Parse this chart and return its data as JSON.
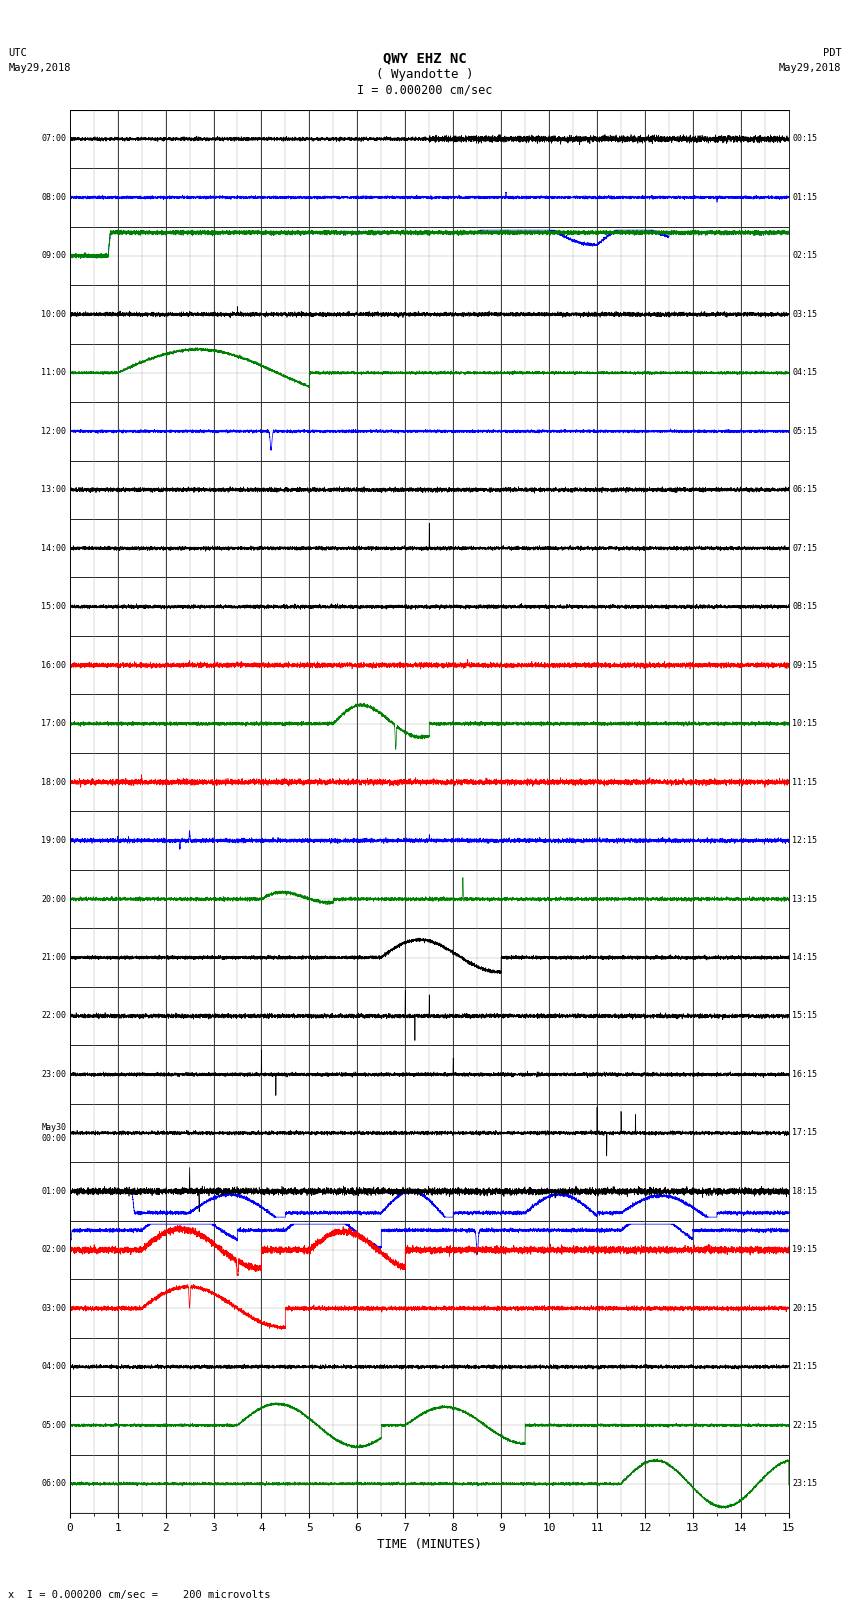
{
  "title_line1": "QWY EHZ NC",
  "title_line2": "( Wyandotte )",
  "scale_label": "I = 0.000200 cm/sec",
  "footer_label": "x  I = 0.000200 cm/sec =    200 microvolts",
  "utc_label": "UTC",
  "utc_date": "May29,2018",
  "pdt_label": "PDT",
  "pdt_date": "May29,2018",
  "xlabel": "TIME (MINUTES)",
  "xlim": [
    0,
    15
  ],
  "xticks": [
    0,
    1,
    2,
    3,
    4,
    5,
    6,
    7,
    8,
    9,
    10,
    11,
    12,
    13,
    14,
    15
  ],
  "num_rows": 24,
  "bg_color": "#ffffff",
  "left_times": [
    "07:00",
    "08:00",
    "09:00",
    "10:00",
    "11:00",
    "12:00",
    "13:00",
    "14:00",
    "15:00",
    "16:00",
    "17:00",
    "18:00",
    "19:00",
    "20:00",
    "21:00",
    "22:00",
    "23:00",
    "May30\n00:00",
    "01:00",
    "02:00",
    "03:00",
    "04:00",
    "05:00",
    "06:00"
  ],
  "right_times": [
    "00:15",
    "01:15",
    "02:15",
    "03:15",
    "04:15",
    "05:15",
    "06:15",
    "07:15",
    "08:15",
    "09:15",
    "10:15",
    "11:15",
    "12:15",
    "13:15",
    "14:15",
    "15:15",
    "16:15",
    "17:15",
    "18:15",
    "19:15",
    "20:15",
    "21:15",
    "22:15",
    "23:15"
  ],
  "row_colors": [
    "black",
    "blue",
    "green",
    "black",
    "red",
    "blue",
    "green",
    "black",
    "red",
    "blue",
    "green",
    "black",
    "red",
    "blue",
    "green",
    "black",
    "red",
    "blue",
    "green",
    "black",
    "red",
    "blue",
    "green",
    "black"
  ]
}
